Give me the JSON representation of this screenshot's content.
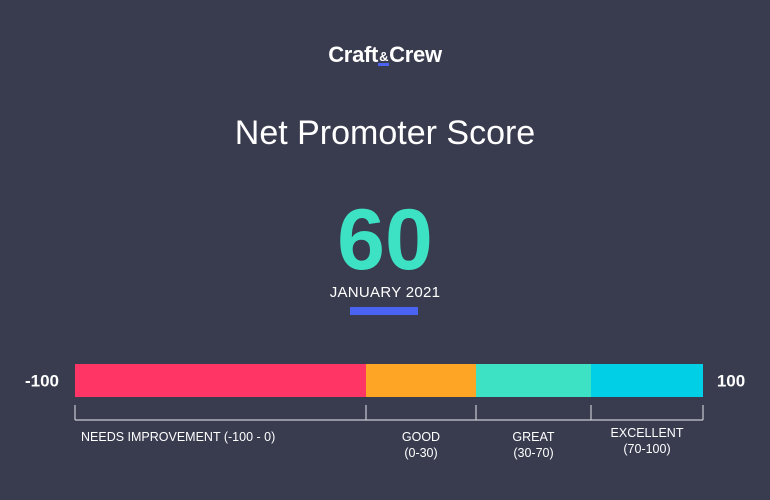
{
  "logo": {
    "part1": "Craft",
    "amp": "&",
    "part2": "Crew"
  },
  "title": "Net Promoter Score",
  "score": {
    "value": "60",
    "period": "JANUARY 2021"
  },
  "colors": {
    "background": "#393b4f",
    "score": "#3de2c4",
    "accent": "#4a63f2"
  },
  "chart_data": {
    "type": "bar",
    "orientation": "horizontal-stacked-range",
    "xlim": [
      -100,
      100
    ],
    "range_labels": [
      "-100",
      "100"
    ],
    "segments": [
      {
        "label": "NEEDS IMPROVEMENT (-100 - 0)",
        "start": -100,
        "end": 0,
        "color": "#ff3565"
      },
      {
        "label": "GOOD",
        "range_label": "(0-30)",
        "start": 0,
        "end": 30,
        "color": "#ffa526"
      },
      {
        "label": "GREAT",
        "range_label": "(30-70)",
        "start": 30,
        "end": 70,
        "color": "#3de2c4"
      },
      {
        "label": "EXCELLENT",
        "range_label": "(70-100)",
        "start": 70,
        "end": 100,
        "color": "#00cfe6"
      }
    ]
  }
}
